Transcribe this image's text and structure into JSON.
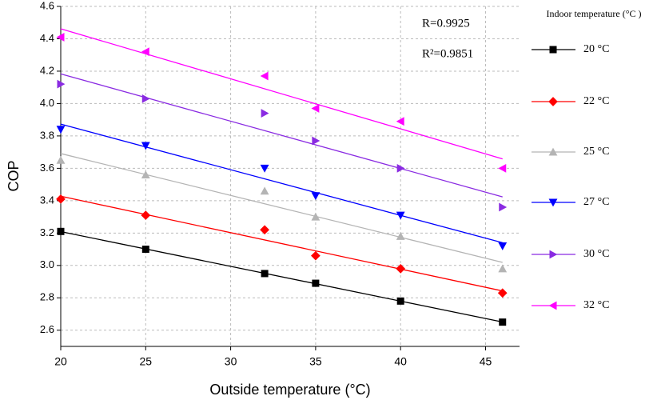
{
  "chart_data": {
    "type": "scatter",
    "xlabel": "Outside temperature (°C)",
    "ylabel": "COP",
    "x": [
      20,
      25,
      32,
      35,
      40,
      46
    ],
    "series": [
      {
        "name": "20 °C",
        "color": "#000000",
        "marker": "square",
        "values": [
          3.21,
          3.1,
          2.95,
          2.89,
          2.78,
          2.65
        ]
      },
      {
        "name": "22 °C",
        "color": "#ff0000",
        "marker": "diamond",
        "values": [
          3.41,
          3.31,
          3.22,
          3.06,
          2.98,
          2.83
        ]
      },
      {
        "name": "25 °C",
        "color": "#b4b4b4",
        "marker": "triangle-up",
        "values": [
          3.65,
          3.56,
          3.46,
          3.3,
          3.18,
          2.98
        ]
      },
      {
        "name": "27 °C",
        "color": "#0000ff",
        "marker": "triangle-down",
        "values": [
          3.84,
          3.74,
          3.6,
          3.43,
          3.31,
          3.12
        ]
      },
      {
        "name": "30 °C",
        "color": "#8a2be2",
        "marker": "triangle-right",
        "values": [
          4.12,
          4.03,
          3.94,
          3.77,
          3.6,
          3.36
        ]
      },
      {
        "name": "32 °C",
        "color": "#ff00ff",
        "marker": "triangle-left",
        "values": [
          4.41,
          4.32,
          4.17,
          3.97,
          3.89,
          3.6
        ]
      }
    ],
    "legend_title": "Indoor temperature (°C )",
    "annotations": [
      "R=0.9925",
      "R²=0.9851"
    ],
    "fit_lines": true,
    "xlim": [
      20,
      47
    ],
    "xticks": [
      20,
      25,
      30,
      35,
      40,
      45
    ],
    "ylim": [
      2.5,
      4.6
    ],
    "yticks": [
      2.6,
      2.8,
      {
        "value": 3,
        "label": "3.0"
      },
      3.2,
      3.4,
      3.6,
      3.8,
      {
        "value": 4,
        "label": "4.0"
      },
      4.2,
      4.4,
      4.6
    ],
    "grid": true
  }
}
